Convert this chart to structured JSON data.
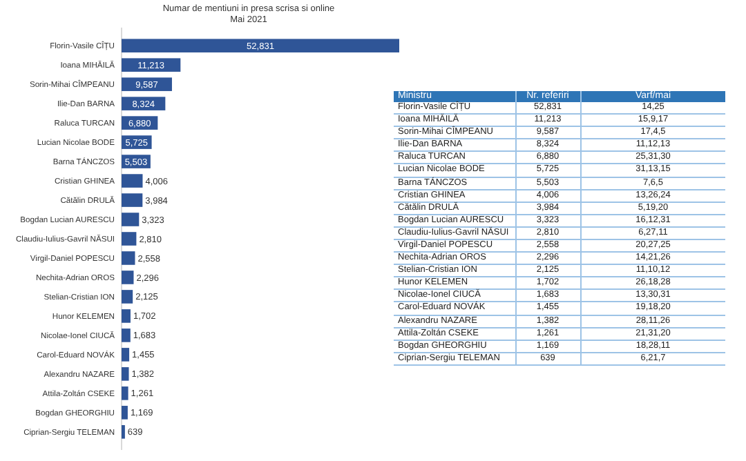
{
  "chart_data": {
    "type": "bar",
    "orientation": "horizontal",
    "title": "Numar de mentiuni in presa scrisa si online",
    "subtitle": "Mai 2021",
    "categories": [
      "Florin-Vasile CÎȚU",
      "Ioana MIHĂILĂ",
      "Sorin-Mihai CÎMPEANU",
      "Ilie-Dan BARNA",
      "Raluca TURCAN",
      "Lucian Nicolae BODE",
      "Barna TÁNCZOS",
      "Cristian GHINEA",
      "Cătălin DRULĂ",
      "Bogdan Lucian AURESCU",
      "Claudiu-Iulius-Gavril NĂSUI",
      "Virgil-Daniel POPESCU",
      "Nechita-Adrian OROS",
      "Stelian-Cristian ION",
      "Hunor KELEMEN",
      "Nicolae-Ionel CIUCĂ",
      "Carol-Eduard NOVÁK",
      "Alexandru NAZARE",
      "Attila-Zoltán CSEKE",
      "Bogdan GHEORGHIU",
      "Ciprian-Sergiu TELEMAN"
    ],
    "values": [
      52831,
      11213,
      9587,
      8324,
      6880,
      5725,
      5503,
      4006,
      3984,
      3323,
      2810,
      2558,
      2296,
      2125,
      1702,
      1683,
      1455,
      1382,
      1261,
      1169,
      639
    ],
    "value_labels": [
      "52,831",
      "11,213",
      "9,587",
      "8,324",
      "6,880",
      "5,725",
      "5,503",
      "4,006",
      "3,984",
      "3,323",
      "2,810",
      "2,558",
      "2,296",
      "2,125",
      "1,702",
      "1,683",
      "1,455",
      "1,382",
      "1,261",
      "1,169",
      "639"
    ],
    "color": "#2f5597",
    "annotations": [
      "Ministru",
      "Nr. referiri",
      "Varf/mai",
      "14,25",
      "15,9,17",
      "17,4,5",
      "11,12,13",
      "25,31,30",
      "31,13,15",
      "7,6,5",
      "13,26,24",
      "5,19,20",
      "16,12,31",
      "6,27,11",
      "20,27,25",
      "14,21,26",
      "11,10,12",
      "26,18,28",
      "13,30,31",
      "19,18,20",
      "28,11,26",
      "21,31,20",
      "18,28,11",
      "6,21,7"
    ]
  }
}
